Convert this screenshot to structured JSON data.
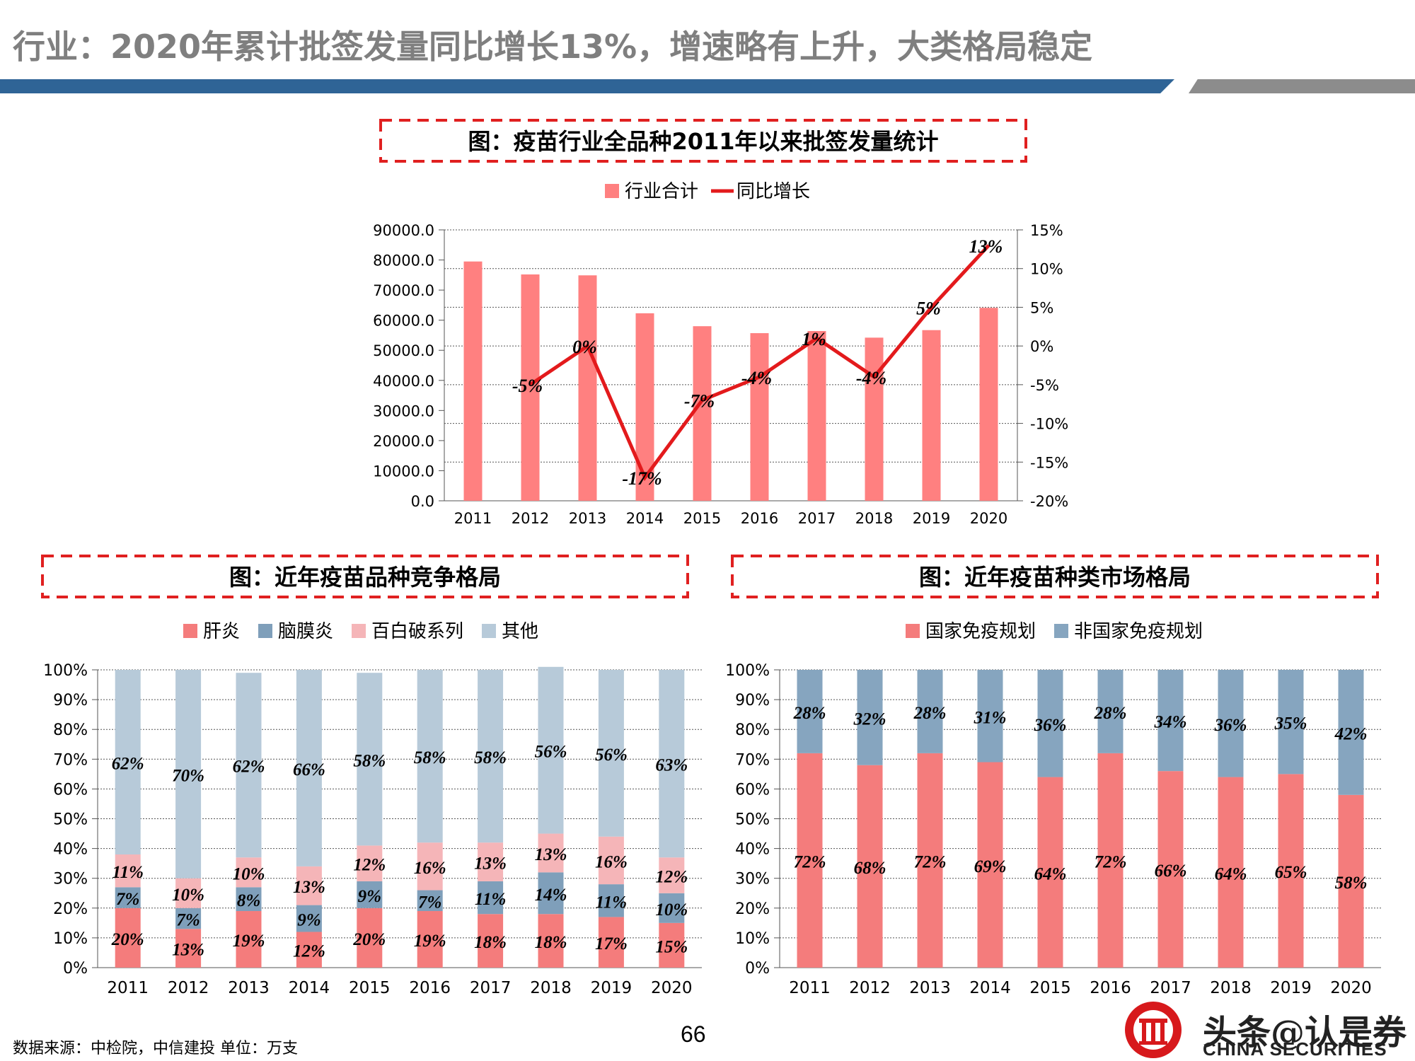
{
  "page": {
    "title": "行业：2020年累计批签发量同比增长13%，增速略有上升，大类格局稳定",
    "source": "数据来源：中检院，中信建投 单位：万支",
    "page_number": "66",
    "brand_cn": "头条@认是券",
    "brand_en": "CHINA SECURITIES",
    "colors": {
      "primary_band": "#2f6496",
      "secondary_band": "#8c8c8c",
      "frame_red": "#e02020"
    }
  },
  "chart_data": [
    {
      "type": "bar",
      "title": "图：疫苗行业全品种2011年以来批签发量统计",
      "categories": [
        "2011",
        "2012",
        "2013",
        "2014",
        "2015",
        "2016",
        "2017",
        "2018",
        "2019",
        "2020"
      ],
      "series": [
        {
          "name": "行业合计",
          "kind": "bar",
          "color": "#ff8080",
          "values": [
            79500,
            75200,
            74900,
            62300,
            58000,
            55700,
            56400,
            54200,
            56700,
            64100
          ]
        },
        {
          "name": "同比增长",
          "kind": "line",
          "color": "#e31a1c",
          "axis": "right",
          "values": [
            null,
            -0.05,
            0.0,
            -0.17,
            -0.07,
            -0.04,
            0.01,
            -0.04,
            0.05,
            0.13
          ],
          "labels": [
            "",
            "-5%",
            "0%",
            "-17%",
            "-7%",
            "-4%",
            "1%",
            "-4%",
            "5%",
            "13%"
          ]
        }
      ],
      "y_ticks": [
        "0.0",
        "10000.0",
        "20000.0",
        "30000.0",
        "40000.0",
        "50000.0",
        "60000.0",
        "70000.0",
        "80000.0",
        "90000.0"
      ],
      "ylim": [
        0,
        90000
      ],
      "y2_ticks": [
        "-20%",
        "-15%",
        "-10%",
        "-5%",
        "0%",
        "5%",
        "10%",
        "15%"
      ],
      "y2lim": [
        -0.2,
        0.15
      ],
      "legend": "top",
      "grid": true
    },
    {
      "type": "bar",
      "stacked": true,
      "title": "图：近年疫苗品种竞争格局",
      "categories": [
        "2011",
        "2012",
        "2013",
        "2014",
        "2015",
        "2016",
        "2017",
        "2018",
        "2019",
        "2020"
      ],
      "series": [
        {
          "name": "肝炎",
          "color": "#f47c7c",
          "values": [
            20,
            13,
            19,
            12,
            20,
            19,
            18,
            18,
            17,
            15
          ]
        },
        {
          "name": "脑膜炎",
          "color": "#7f9fba",
          "values": [
            7,
            7,
            8,
            9,
            9,
            7,
            11,
            14,
            11,
            10
          ]
        },
        {
          "name": "百白破系列",
          "color": "#f5b5b8",
          "values": [
            11,
            10,
            10,
            13,
            12,
            16,
            13,
            13,
            16,
            12
          ]
        },
        {
          "name": "其他",
          "color": "#b7cad9",
          "values": [
            62,
            70,
            62,
            66,
            58,
            58,
            58,
            56,
            56,
            63
          ]
        }
      ],
      "y_ticks": [
        "0%",
        "10%",
        "20%",
        "30%",
        "40%",
        "50%",
        "60%",
        "70%",
        "80%",
        "90%",
        "100%"
      ],
      "ylim": [
        0,
        100
      ],
      "legend": "top",
      "grid": true
    },
    {
      "type": "bar",
      "stacked": true,
      "title": "图：近年疫苗种类市场格局",
      "categories": [
        "2011",
        "2012",
        "2013",
        "2014",
        "2015",
        "2016",
        "2017",
        "2018",
        "2019",
        "2020"
      ],
      "series": [
        {
          "name": "国家免疫规划",
          "color": "#f47c7c",
          "values": [
            72,
            68,
            72,
            69,
            64,
            72,
            66,
            64,
            65,
            58
          ]
        },
        {
          "name": "非国家免疫规划",
          "color": "#86a5bf",
          "values": [
            28,
            32,
            28,
            31,
            36,
            28,
            34,
            36,
            35,
            42
          ]
        }
      ],
      "y_ticks": [
        "0%",
        "10%",
        "20%",
        "30%",
        "40%",
        "50%",
        "60%",
        "70%",
        "80%",
        "90%",
        "100%"
      ],
      "ylim": [
        0,
        100
      ],
      "legend": "top",
      "grid": true
    }
  ]
}
